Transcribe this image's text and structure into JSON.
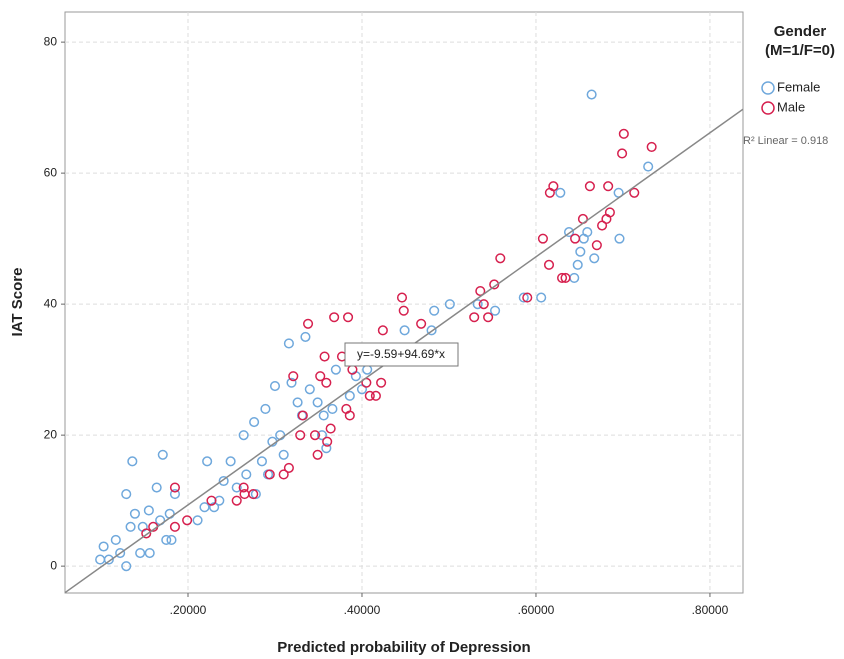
{
  "chart_data": {
    "type": "scatter",
    "xlabel": "Predicted probability of Depression",
    "ylabel": "IAT Score",
    "xlim": [
      0.0586,
      0.838
    ],
    "ylim": [
      -4.1,
      84.6
    ],
    "xticks": [
      {
        "value": 0.2,
        "label": ".20000"
      },
      {
        "value": 0.4,
        "label": ".40000"
      },
      {
        "value": 0.6,
        "label": ".60000"
      },
      {
        "value": 0.8,
        "label": ".80000"
      }
    ],
    "yticks": [
      0,
      20,
      40,
      60,
      80
    ],
    "grid": true,
    "legend_title": [
      "Gender",
      "(M=1/F=0)"
    ],
    "legend_position": "right",
    "series": [
      {
        "name": "Female",
        "color": "#6fa8dc",
        "x": [
          0.099,
          0.103,
          0.109,
          0.117,
          0.122,
          0.129,
          0.129,
          0.136,
          0.134,
          0.139,
          0.145,
          0.148,
          0.155,
          0.156,
          0.164,
          0.171,
          0.168,
          0.175,
          0.179,
          0.181,
          0.185,
          0.211,
          0.219,
          0.222,
          0.23,
          0.236,
          0.241,
          0.249,
          0.256,
          0.264,
          0.267,
          0.276,
          0.278,
          0.285,
          0.289,
          0.292,
          0.297,
          0.3,
          0.306,
          0.31,
          0.316,
          0.319,
          0.326,
          0.331,
          0.335,
          0.34,
          0.349,
          0.354,
          0.356,
          0.359,
          0.366,
          0.37,
          0.386,
          0.393,
          0.4,
          0.406,
          0.449,
          0.48,
          0.483,
          0.501,
          0.533,
          0.553,
          0.586,
          0.606,
          0.628,
          0.638,
          0.644,
          0.648,
          0.651,
          0.655,
          0.659,
          0.664,
          0.667,
          0.695,
          0.696,
          0.729
        ],
        "values": [
          1,
          3,
          1,
          4,
          2,
          0,
          11,
          16,
          6,
          8,
          2,
          6,
          8.5,
          2,
          12,
          17,
          7,
          4,
          8,
          4,
          11,
          7,
          9,
          16,
          9,
          10,
          13,
          16,
          12,
          20,
          14,
          22,
          11,
          16,
          24,
          14,
          19,
          27.5,
          20,
          17,
          34,
          28,
          25,
          23,
          35,
          27,
          25,
          20,
          23,
          18,
          24,
          30,
          26,
          29,
          27,
          30,
          36,
          36,
          39,
          40,
          40,
          39,
          41,
          41,
          57,
          51,
          44,
          46,
          48,
          50,
          51,
          72,
          47,
          57,
          50,
          61
        ]
      },
      {
        "name": "Male",
        "color": "#d6204e",
        "x": [
          0.152,
          0.16,
          0.185,
          0.185,
          0.199,
          0.227,
          0.256,
          0.264,
          0.265,
          0.275,
          0.294,
          0.31,
          0.316,
          0.321,
          0.329,
          0.332,
          0.338,
          0.346,
          0.349,
          0.352,
          0.357,
          0.359,
          0.364,
          0.36,
          0.368,
          0.377,
          0.382,
          0.384,
          0.386,
          0.389,
          0.405,
          0.409,
          0.416,
          0.422,
          0.424,
          0.446,
          0.448,
          0.468,
          0.529,
          0.536,
          0.54,
          0.545,
          0.552,
          0.559,
          0.59,
          0.608,
          0.615,
          0.616,
          0.62,
          0.63,
          0.634,
          0.645,
          0.654,
          0.662,
          0.67,
          0.676,
          0.681,
          0.683,
          0.685,
          0.699,
          0.701,
          0.713,
          0.733
        ],
        "values": [
          5,
          6,
          12,
          6,
          7,
          10,
          10,
          12,
          11,
          11,
          14,
          14,
          15,
          29,
          20,
          23,
          37,
          20,
          17,
          29,
          32,
          28,
          21,
          19,
          38,
          32,
          24,
          38,
          23,
          30,
          28,
          26,
          26,
          28,
          36,
          41,
          39,
          37,
          38,
          42,
          40,
          38,
          43,
          47,
          41,
          50,
          46,
          57,
          58,
          44,
          44,
          50,
          53,
          58,
          49,
          52,
          53,
          58,
          54,
          63,
          66,
          57,
          64
        ]
      }
    ],
    "fit": {
      "intercept": -9.59,
      "slope": 94.69,
      "label": "y=-9.59+94.69*x",
      "r2_label": "R² Linear = 0.918"
    }
  }
}
